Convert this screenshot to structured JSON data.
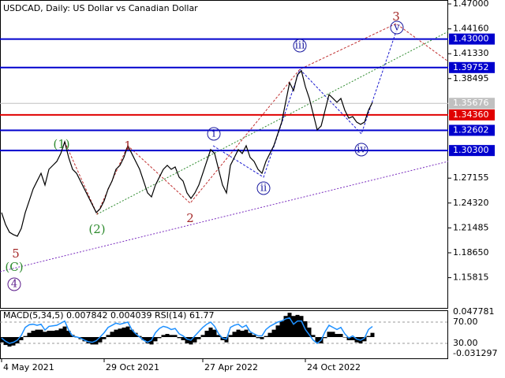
{
  "chart_data": {
    "type": "line",
    "title": "USDCAD, Daily:  US Dollar vs Canadian Dollar",
    "categories": [
      "4 May 2021",
      null,
      null,
      null,
      null,
      null,
      null,
      null,
      null,
      null,
      null,
      null,
      null,
      null,
      null,
      null,
      null,
      null,
      null,
      null,
      null,
      null,
      null,
      null,
      null,
      null,
      "29 Oct 2021",
      null,
      null,
      null,
      null,
      null,
      null,
      null,
      null,
      null,
      null,
      null,
      null,
      null,
      null,
      null,
      null,
      null,
      null,
      null,
      null,
      null,
      null,
      null,
      null,
      "27 Apr 2022",
      null,
      null,
      null,
      null,
      null,
      null,
      null,
      null,
      null,
      null,
      null,
      null,
      null,
      null,
      null,
      null,
      null,
      null,
      null,
      null,
      null,
      null,
      null,
      null,
      null,
      "24 Oct 2022",
      null,
      null,
      null,
      null,
      null,
      null,
      null,
      null,
      null,
      null,
      null,
      null,
      null,
      null,
      null,
      null,
      null
    ],
    "series": [
      {
        "color": "#000000",
        "values": [
          1.2323,
          1.2188,
          1.2099,
          1.2072,
          1.2054,
          1.2143,
          1.2323,
          1.2457,
          1.2592,
          1.2682,
          1.2771,
          1.2637,
          1.2816,
          1.2861,
          1.2906,
          1.2996,
          1.313,
          1.2951,
          1.2816,
          1.2771,
          1.2682,
          1.2592,
          1.2502,
          1.2413,
          1.2323,
          1.2368,
          1.2457,
          1.2592,
          1.2682,
          1.2816,
          1.2861,
          1.2951,
          1.3085,
          1.2996,
          1.2906,
          1.2816,
          1.2682,
          1.2547,
          1.2502,
          1.2637,
          1.2727,
          1.2816,
          1.2861,
          1.2816,
          1.2843,
          1.2727,
          1.2682,
          1.2547,
          1.2484,
          1.2547,
          1.2637,
          1.2771,
          1.2906,
          1.3041,
          1.2996,
          1.2816,
          1.2637,
          1.2547,
          1.2861,
          1.2951,
          1.3041,
          1.2996,
          1.3085,
          1.2951,
          1.2906,
          1.2816,
          1.2771,
          1.2906,
          1.2996,
          1.3085,
          1.322,
          1.3354,
          1.3579,
          1.3803,
          1.3713,
          1.3893,
          1.3938,
          1.3758,
          1.3624,
          1.3444,
          1.3265,
          1.331,
          1.3489,
          1.3668,
          1.3624,
          1.3579,
          1.3624,
          1.3489,
          1.3399,
          1.3417,
          1.3354,
          1.3328,
          1.3354,
          1.3489,
          1.3579
        ]
      }
    ],
    "ylim": [
      1.1228,
      1.4745
    ],
    "yticks": [
      {
        "value": 1.47,
        "label": "1.47000"
      },
      {
        "value": 1.4416,
        "label": "1.44160"
      },
      {
        "value": 1.4133,
        "label": "1.41330"
      },
      {
        "value": 1.38495,
        "label": "1.38495"
      },
      {
        "value": 1.27155,
        "label": "1.27155"
      },
      {
        "value": 1.2432,
        "label": "1.24320"
      },
      {
        "value": 1.21485,
        "label": "1.21485"
      },
      {
        "value": 1.1865,
        "label": "1.18650"
      },
      {
        "value": 1.15815,
        "label": "1.15815"
      }
    ],
    "levels": [
      {
        "value": 1.43,
        "label": "1.43000",
        "color": "#0000cd"
      },
      {
        "value": 1.39752,
        "label": "1.39752",
        "color": "#0000cd"
      },
      {
        "value": 1.3436,
        "label": "1.34360",
        "color": "#e00000"
      },
      {
        "value": 1.32602,
        "label": "1.32602",
        "color": "#0000cd"
      },
      {
        "value": 1.303,
        "label": "1.30300",
        "color": "#0000cd"
      }
    ],
    "current_price": {
      "value": 1.35676,
      "label": "1.35676",
      "color": "#c0c0c0"
    },
    "wave_labels": [
      {
        "text": "(1)",
        "color": "#2e8b2e"
      },
      {
        "text": "(2)",
        "color": "#2e8b2e"
      },
      {
        "text": "(C)",
        "color": "#2e8b2e"
      },
      {
        "text": "1",
        "color": "#a52a2a"
      },
      {
        "text": "2",
        "color": "#a52a2a"
      },
      {
        "text": "3",
        "color": "#a52a2a"
      },
      {
        "text": "5",
        "color": "#a52a2a"
      },
      {
        "text": "4",
        "color": "#5a1a8a"
      },
      {
        "text": "i",
        "color": "#1a1aa0"
      },
      {
        "text": "ii",
        "color": "#1a1aa0"
      },
      {
        "text": "iii",
        "color": "#1a1aa0"
      },
      {
        "text": "iv",
        "color": "#1a1aa0"
      },
      {
        "text": "v",
        "color": "#1a1aa0"
      }
    ],
    "indicator": {
      "header": "MACD(5,34,5) 0.007842 0.004039 RSI(14) 61.77",
      "macd_lim": [
        {
          "value": -0.031297,
          "label": "-0.031297"
        },
        {
          "value": 0.047781,
          "label": "0.047781"
        }
      ],
      "rsi_levels": [
        {
          "value": 30,
          "label": "30.00"
        },
        {
          "value": 70,
          "label": "70.00"
        }
      ],
      "macd_color": "#000000",
      "rsi_color": "#1e90ff",
      "macd": [
        -0.01,
        -0.015,
        -0.018,
        -0.016,
        -0.012,
        -0.006,
        0.002,
        0.008,
        0.012,
        0.014,
        0.014,
        0.01,
        0.012,
        0.012,
        0.013,
        0.016,
        0.02,
        0.012,
        0.004,
        0.0,
        -0.004,
        -0.008,
        -0.012,
        -0.014,
        -0.014,
        -0.01,
        -0.004,
        0.004,
        0.01,
        0.014,
        0.016,
        0.018,
        0.02,
        0.014,
        0.008,
        0.002,
        -0.006,
        -0.012,
        -0.014,
        -0.008,
        -0.002,
        0.004,
        0.006,
        0.004,
        0.004,
        -0.002,
        -0.006,
        -0.012,
        -0.014,
        -0.01,
        -0.004,
        0.004,
        0.012,
        0.018,
        0.014,
        0.004,
        -0.006,
        -0.01,
        0.004,
        0.01,
        0.014,
        0.012,
        0.014,
        0.008,
        0.004,
        -0.002,
        -0.004,
        0.002,
        0.008,
        0.014,
        0.022,
        0.03,
        0.04,
        0.046,
        0.04,
        0.042,
        0.04,
        0.03,
        0.018,
        0.004,
        -0.01,
        -0.012,
        -0.002,
        0.01,
        0.01,
        0.006,
        0.006,
        0.0,
        -0.006,
        -0.006,
        -0.01,
        -0.012,
        -0.008,
        0.002,
        0.008
      ],
      "rsi": [
        40,
        34,
        30,
        32,
        36,
        45,
        60,
        65,
        66,
        64,
        66,
        55,
        62,
        63,
        64,
        68,
        72,
        55,
        44,
        42,
        40,
        36,
        33,
        32,
        35,
        42,
        50,
        60,
        64,
        68,
        66,
        68,
        70,
        56,
        48,
        42,
        36,
        32,
        36,
        50,
        58,
        62,
        60,
        56,
        58,
        48,
        44,
        38,
        36,
        44,
        52,
        60,
        66,
        70,
        62,
        48,
        40,
        38,
        60,
        64,
        66,
        60,
        64,
        52,
        48,
        44,
        44,
        56,
        62,
        66,
        70,
        72,
        76,
        78,
        66,
        72,
        72,
        56,
        46,
        36,
        30,
        36,
        52,
        64,
        60,
        56,
        60,
        48,
        40,
        44,
        38,
        36,
        40,
        56,
        61.77
      ]
    }
  }
}
